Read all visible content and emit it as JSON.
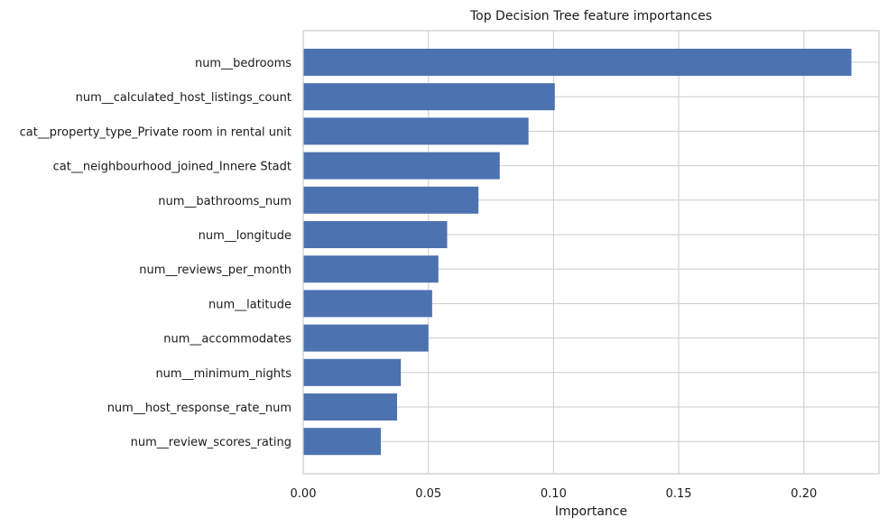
{
  "chart_data": {
    "type": "bar",
    "orientation": "horizontal",
    "title": "Top Decision Tree feature importances",
    "xlabel": "Importance",
    "ylabel": "",
    "xlim": [
      0,
      0.23
    ],
    "xticks": [
      "0.00",
      "0.05",
      "0.10",
      "0.15",
      "0.20"
    ],
    "grid": true,
    "bar_color": "#4c72b0",
    "categories": [
      "num__bedrooms",
      "num__calculated_host_listings_count",
      "cat__property_type_Private room in rental unit",
      "cat__neighbourhood_joined_Innere Stadt",
      "num__bathrooms_num",
      "num__longitude",
      "num__reviews_per_month",
      "num__latitude",
      "num__accommodates",
      "num__minimum_nights",
      "num__host_response_rate_num",
      "num__review_scores_rating"
    ],
    "values": [
      0.219,
      0.1005,
      0.09,
      0.0785,
      0.07,
      0.0575,
      0.054,
      0.0515,
      0.05,
      0.039,
      0.0375,
      0.031
    ]
  }
}
